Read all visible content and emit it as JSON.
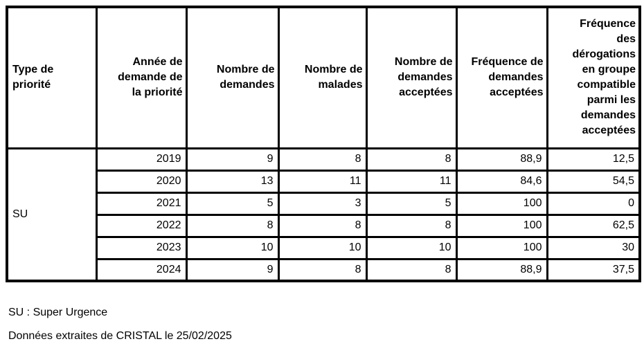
{
  "chart_data": {
    "type": "table",
    "columns": [
      {
        "id": "type_priorite",
        "label": "Type de\npriorité",
        "align": "left"
      },
      {
        "id": "annee",
        "label": "Année de\ndemande de\nla priorité",
        "align": "right"
      },
      {
        "id": "nb_demandes",
        "label": "Nombre de\ndemandes",
        "align": "right"
      },
      {
        "id": "nb_malades",
        "label": "Nombre de\nmalades",
        "align": "right"
      },
      {
        "id": "nb_acceptees",
        "label": "Nombre de\ndemandes\nacceptées",
        "align": "right"
      },
      {
        "id": "freq_acceptees",
        "label": "Fréquence de\ndemandes\nacceptées",
        "align": "right"
      },
      {
        "id": "freq_derogations",
        "label": "Fréquence\ndes\ndérogations\nen groupe\ncompatible\nparmi les\ndemandes\nacceptées",
        "align": "right"
      }
    ],
    "group": {
      "label": "SU"
    },
    "rows": [
      {
        "annee": "2019",
        "nb_demandes": "9",
        "nb_malades": "8",
        "nb_acceptees": "8",
        "freq_acceptees": "88,9",
        "freq_derogations": "12,5"
      },
      {
        "annee": "2020",
        "nb_demandes": "13",
        "nb_malades": "11",
        "nb_acceptees": "11",
        "freq_acceptees": "84,6",
        "freq_derogations": "54,5"
      },
      {
        "annee": "2021",
        "nb_demandes": "5",
        "nb_malades": "3",
        "nb_acceptees": "5",
        "freq_acceptees": "100",
        "freq_derogations": "0"
      },
      {
        "annee": "2022",
        "nb_demandes": "8",
        "nb_malades": "8",
        "nb_acceptees": "8",
        "freq_acceptees": "100",
        "freq_derogations": "62,5"
      },
      {
        "annee": "2023",
        "nb_demandes": "10",
        "nb_malades": "10",
        "nb_acceptees": "10",
        "freq_acceptees": "100",
        "freq_derogations": "30"
      },
      {
        "annee": "2024",
        "nb_demandes": "9",
        "nb_malades": "8",
        "nb_acceptees": "8",
        "freq_acceptees": "88,9",
        "freq_derogations": "37,5"
      }
    ]
  },
  "footnotes": [
    "SU : Super Urgence",
    "Données extraites de CRISTAL le 25/02/2025"
  ],
  "colors": {
    "border": "#000000",
    "text": "#000000",
    "background": "#ffffff"
  }
}
